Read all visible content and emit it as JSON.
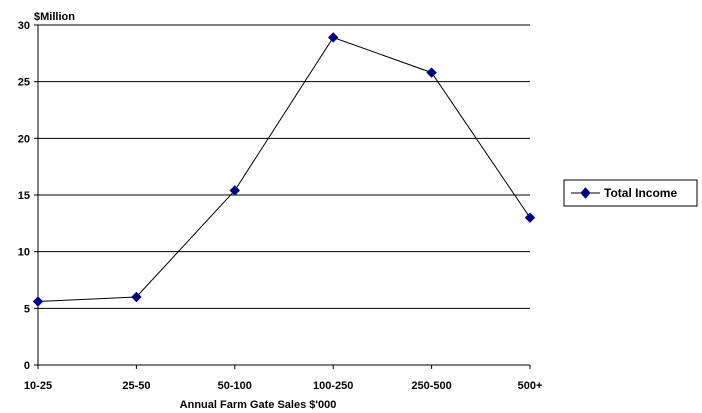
{
  "chart_data": {
    "type": "line",
    "title": "",
    "ylabel": "$Million",
    "xlabel": "Annual Farm Gate Sales $'000",
    "categories": [
      "10-25",
      "25-50",
      "50-100",
      "100-250",
      "250-500",
      "500+"
    ],
    "series": [
      {
        "name": "Total Income",
        "values": [
          5.6,
          6.0,
          15.4,
          28.9,
          25.8,
          13.0
        ]
      }
    ],
    "ylim": [
      0,
      30
    ],
    "yticks": [
      0,
      5,
      10,
      15,
      20,
      25,
      30
    ],
    "grid": true,
    "legend": "right",
    "colors": {
      "series": "#000080",
      "line": "#000000",
      "grid": "#000000"
    }
  }
}
